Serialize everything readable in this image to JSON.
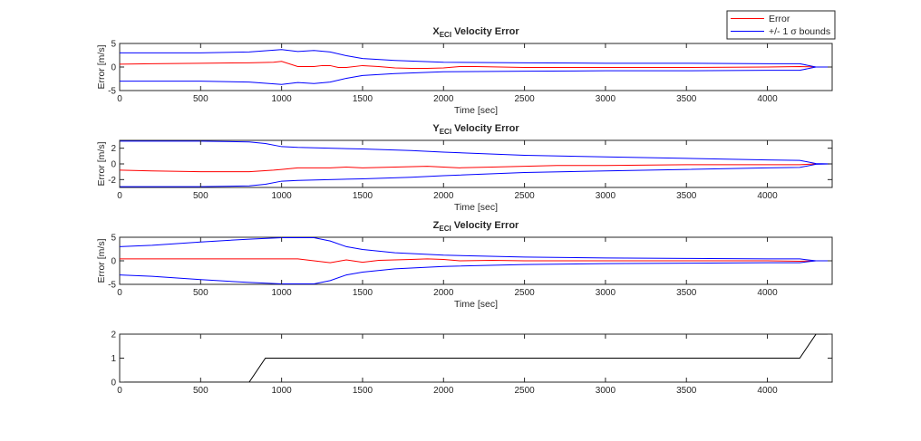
{
  "colors": {
    "error": "#ff0000",
    "bounds": "#0000ff",
    "step": "#000000",
    "axis": "#262626"
  },
  "legend": {
    "entries": [
      {
        "label": "Error",
        "color": "#ff0000"
      },
      {
        "label": "+/- 1 σ bounds",
        "color": "#0000ff"
      }
    ],
    "placement": "top-right"
  },
  "chart_data": [
    {
      "type": "line",
      "title": {
        "main": "X",
        "sub": "ECI",
        "rest": " Velocity Error"
      },
      "xlabel": "Time [sec]",
      "ylabel": "Error [m/s]",
      "xlim": [
        0,
        4400
      ],
      "ylim": [
        -5,
        5
      ],
      "xticks": [
        0,
        500,
        1000,
        1500,
        2000,
        2500,
        3000,
        3500,
        4000
      ],
      "yticks": [
        -5,
        0,
        5
      ],
      "series": [
        {
          "name": "Error",
          "color": "#ff0000",
          "x": [
            0,
            200,
            500,
            800,
            950,
            1000,
            1100,
            1200,
            1250,
            1300,
            1350,
            1400,
            1500,
            1600,
            1700,
            1800,
            1900,
            2000,
            2100,
            2200,
            2500,
            3000,
            3500,
            4000,
            4200,
            4300,
            4400
          ],
          "y": [
            0.6,
            0.7,
            0.8,
            0.9,
            1.0,
            1.2,
            0.1,
            0.1,
            0.3,
            0.3,
            -0.1,
            -0.1,
            0.3,
            0.1,
            -0.2,
            -0.3,
            -0.3,
            -0.2,
            0.1,
            0.1,
            -0.1,
            -0.1,
            -0.1,
            0.0,
            0.1,
            0.0,
            0.0
          ]
        },
        {
          "name": "+/- 1 σ bounds",
          "color": "#0000ff",
          "x": [
            0,
            500,
            800,
            1000,
            1100,
            1200,
            1300,
            1400,
            1500,
            1700,
            2000,
            2500,
            3000,
            3500,
            4000,
            4200,
            4300,
            4400
          ],
          "y": [
            3.0,
            3.0,
            3.2,
            3.7,
            3.3,
            3.5,
            3.2,
            2.4,
            1.8,
            1.4,
            1.0,
            0.9,
            0.8,
            0.8,
            0.7,
            0.7,
            0.0,
            0.0
          ]
        },
        {
          "color": "#0000ff",
          "x": [
            0,
            500,
            800,
            1000,
            1100,
            1200,
            1300,
            1400,
            1500,
            1700,
            2000,
            2500,
            3000,
            3500,
            4000,
            4200,
            4300,
            4400
          ],
          "y": [
            -3.0,
            -3.0,
            -3.2,
            -3.7,
            -3.3,
            -3.5,
            -3.2,
            -2.4,
            -1.8,
            -1.4,
            -1.0,
            -0.9,
            -0.8,
            -0.8,
            -0.7,
            -0.7,
            0.0,
            0.0
          ]
        }
      ]
    },
    {
      "type": "line",
      "title": {
        "main": "Y",
        "sub": "ECI",
        "rest": " Velocity Error"
      },
      "xlabel": "Time [sec]",
      "ylabel": "Error [m/s]",
      "xlim": [
        0,
        4400
      ],
      "ylim": [
        -3,
        3
      ],
      "xticks": [
        0,
        500,
        1000,
        1500,
        2000,
        2500,
        3000,
        3500,
        4000
      ],
      "yticks": [
        -2,
        0,
        2
      ],
      "series": [
        {
          "name": "Error",
          "color": "#ff0000",
          "x": [
            0,
            200,
            500,
            800,
            950,
            1000,
            1100,
            1200,
            1300,
            1400,
            1500,
            1700,
            1900,
            2100,
            2300,
            2500,
            2700,
            3000,
            3500,
            4000,
            4200,
            4300,
            4400
          ],
          "y": [
            -0.8,
            -0.9,
            -1.0,
            -1.0,
            -0.8,
            -0.7,
            -0.5,
            -0.5,
            -0.5,
            -0.4,
            -0.5,
            -0.4,
            -0.3,
            -0.5,
            -0.4,
            -0.3,
            -0.2,
            -0.2,
            -0.1,
            -0.1,
            -0.1,
            0.0,
            0.0
          ]
        },
        {
          "name": "+/- 1 σ bounds",
          "color": "#0000ff",
          "x": [
            0,
            500,
            800,
            900,
            1000,
            1100,
            1500,
            1800,
            2000,
            2500,
            3000,
            3500,
            4000,
            4200,
            4300,
            4400
          ],
          "y": [
            2.9,
            2.9,
            2.8,
            2.6,
            2.2,
            2.1,
            1.9,
            1.7,
            1.5,
            1.1,
            0.9,
            0.7,
            0.5,
            0.45,
            0.05,
            0.0
          ]
        },
        {
          "color": "#0000ff",
          "x": [
            0,
            500,
            800,
            900,
            1000,
            1100,
            1500,
            1800,
            2000,
            2500,
            3000,
            3500,
            4000,
            4200,
            4300,
            4400
          ],
          "y": [
            -2.9,
            -2.9,
            -2.8,
            -2.6,
            -2.2,
            -2.1,
            -1.9,
            -1.7,
            -1.5,
            -1.1,
            -0.9,
            -0.7,
            -0.5,
            -0.45,
            -0.05,
            0.0
          ]
        }
      ]
    },
    {
      "type": "line",
      "title": {
        "main": "Z",
        "sub": "ECI",
        "rest": " Velocity Error"
      },
      "xlabel": "Time [sec]",
      "ylabel": "Error [m/s]",
      "xlim": [
        0,
        4400
      ],
      "ylim": [
        -5,
        5
      ],
      "xticks": [
        0,
        500,
        1000,
        1500,
        2000,
        2500,
        3000,
        3500,
        4000
      ],
      "yticks": [
        -5,
        0,
        5
      ],
      "series": [
        {
          "name": "Error",
          "color": "#ff0000",
          "x": [
            0,
            500,
            1000,
            1100,
            1200,
            1300,
            1400,
            1500,
            1600,
            1700,
            1800,
            1900,
            2000,
            2100,
            2300,
            2500,
            3000,
            3500,
            4000,
            4200,
            4300,
            4400
          ],
          "y": [
            0.4,
            0.4,
            0.4,
            0.4,
            0.0,
            -0.4,
            0.2,
            -0.3,
            0.1,
            0.2,
            0.3,
            0.4,
            0.3,
            0.0,
            0.1,
            0.0,
            0.0,
            0.0,
            0.0,
            -0.1,
            0.0,
            0.0
          ]
        },
        {
          "name": "+/- 1 σ bounds",
          "color": "#0000ff",
          "x": [
            0,
            200,
            500,
            800,
            1000,
            1100,
            1200,
            1300,
            1400,
            1500,
            1700,
            2000,
            2500,
            3000,
            3500,
            4000,
            4200,
            4300,
            4400
          ],
          "y": [
            3.0,
            3.3,
            4.0,
            4.6,
            4.9,
            4.9,
            4.9,
            4.2,
            3.0,
            2.4,
            1.7,
            1.2,
            0.8,
            0.6,
            0.5,
            0.4,
            0.4,
            0.0,
            0.0
          ]
        },
        {
          "color": "#0000ff",
          "x": [
            0,
            200,
            500,
            800,
            1000,
            1100,
            1200,
            1300,
            1400,
            1500,
            1700,
            2000,
            2500,
            3000,
            3500,
            4000,
            4200,
            4300,
            4400
          ],
          "y": [
            -3.0,
            -3.3,
            -4.0,
            -4.6,
            -4.9,
            -4.9,
            -4.9,
            -4.2,
            -3.0,
            -2.4,
            -1.7,
            -1.2,
            -0.8,
            -0.6,
            -0.5,
            -0.4,
            -0.4,
            0.0,
            0.0
          ]
        }
      ]
    },
    {
      "type": "line",
      "title": null,
      "xlabel": "",
      "ylabel": "",
      "xlim": [
        0,
        4400
      ],
      "ylim": [
        0,
        2
      ],
      "xticks": [
        0,
        500,
        1000,
        1500,
        2000,
        2500,
        3000,
        3500,
        4000
      ],
      "yticks": [
        0,
        1,
        2
      ],
      "series": [
        {
          "color": "#000000",
          "x": [
            0,
            800,
            900,
            4200,
            4300,
            4400
          ],
          "y": [
            0,
            0,
            1,
            1,
            2,
            2
          ]
        }
      ]
    }
  ]
}
